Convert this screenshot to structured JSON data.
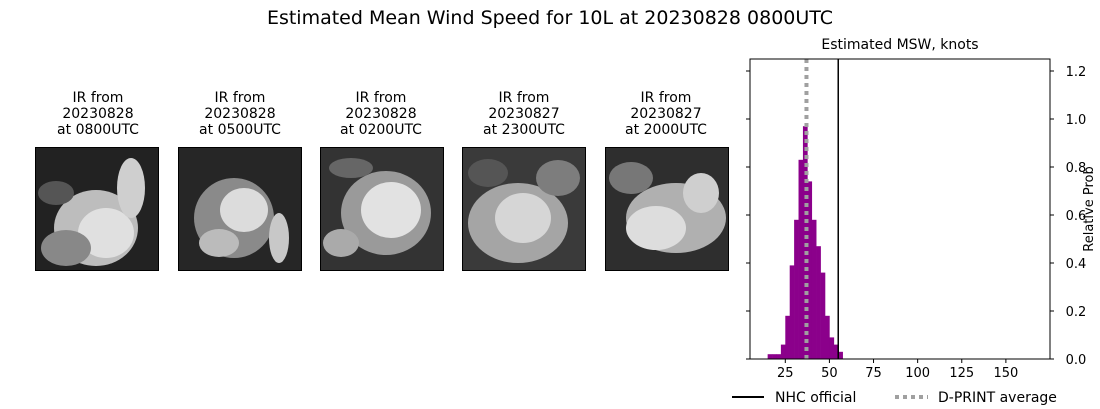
{
  "figure": {
    "title": "Estimated Mean Wind Speed for 10L at 20230828 0800UTC"
  },
  "panels": [
    {
      "line1": "IR from",
      "line2": "20230828",
      "line3": "at 0800UTC"
    },
    {
      "line1": "IR from",
      "line2": "20230828",
      "line3": "at 0500UTC"
    },
    {
      "line1": "IR from",
      "line2": "20230828",
      "line3": "at 0200UTC"
    },
    {
      "line1": "IR from",
      "line2": "20230827",
      "line3": "at 2300UTC"
    },
    {
      "line1": "IR from",
      "line2": "20230827",
      "line3": "at 2000UTC"
    }
  ],
  "chart_data": {
    "type": "bar",
    "title": "Estimated MSW, knots",
    "ylabel": "Relative Prob",
    "xlim": [
      5,
      175
    ],
    "ylim": [
      0,
      1.25
    ],
    "xticks": [
      25,
      50,
      75,
      100,
      125,
      150
    ],
    "yticks": [
      "0.0",
      "0.2",
      "0.4",
      "0.6",
      "0.8",
      "1.0",
      "1.2"
    ],
    "bar_width": 2.5,
    "bar_color": "#8b008b",
    "bars": [
      {
        "x": 16.25,
        "y": 0.02
      },
      {
        "x": 18.75,
        "y": 0.02
      },
      {
        "x": 21.25,
        "y": 0.02
      },
      {
        "x": 23.75,
        "y": 0.06
      },
      {
        "x": 26.25,
        "y": 0.18
      },
      {
        "x": 28.75,
        "y": 0.39
      },
      {
        "x": 31.25,
        "y": 0.58
      },
      {
        "x": 33.75,
        "y": 0.83
      },
      {
        "x": 36.25,
        "y": 0.97
      },
      {
        "x": 38.75,
        "y": 0.74
      },
      {
        "x": 41.25,
        "y": 0.58
      },
      {
        "x": 43.75,
        "y": 0.47
      },
      {
        "x": 46.25,
        "y": 0.36
      },
      {
        "x": 48.75,
        "y": 0.18
      },
      {
        "x": 51.25,
        "y": 0.09
      },
      {
        "x": 53.75,
        "y": 0.06
      },
      {
        "x": 56.25,
        "y": 0.03
      }
    ],
    "nhc_official": 55,
    "dprint_average": 37,
    "legend": [
      {
        "label": "NHC official",
        "color": "#000000",
        "style": "solid"
      },
      {
        "label": "D-PRINT average",
        "color": "#a0a0a0",
        "style": "dotted"
      }
    ],
    "legend_placement": "below"
  }
}
